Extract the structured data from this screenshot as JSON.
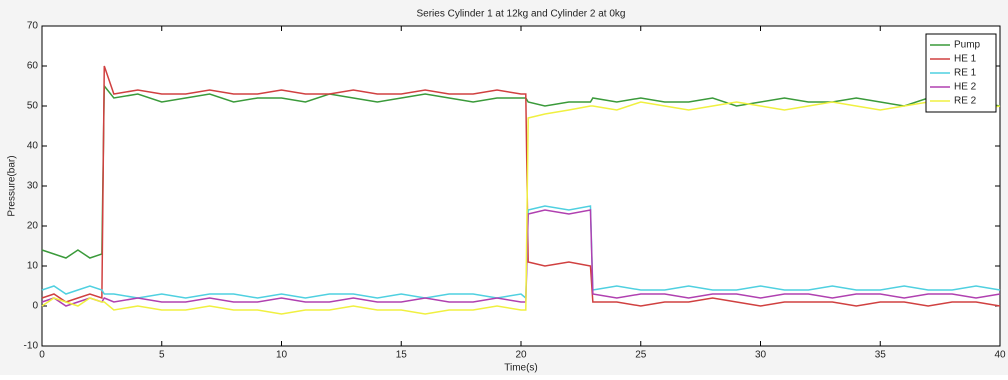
{
  "chart_data": {
    "type": "line",
    "title": "Series   Cylinder 1 at 12kg and Cylinder  2 at 0kg",
    "xlabel": "Time(s)",
    "ylabel": "Pressure(bar)",
    "x": [
      0,
      0.5,
      1,
      1.5,
      2,
      2.5,
      2.6,
      3,
      4,
      5,
      6,
      7,
      8,
      9,
      10,
      11,
      12,
      13,
      14,
      15,
      16,
      17,
      18,
      19,
      20,
      20.2,
      20.3,
      21,
      22,
      22.9,
      23,
      24,
      25,
      26,
      27,
      28,
      29,
      30,
      31,
      32,
      33,
      34,
      35,
      36,
      37,
      38,
      39,
      40
    ],
    "series": [
      {
        "name": "Pump",
        "color": "#3a9a3a",
        "values": [
          14,
          13,
          12,
          14,
          12,
          13,
          55,
          52,
          53,
          51,
          52,
          53,
          51,
          52,
          52,
          51,
          53,
          52,
          51,
          52,
          53,
          52,
          51,
          52,
          52,
          52,
          51,
          50,
          51,
          51,
          52,
          51,
          52,
          51,
          51,
          52,
          50,
          51,
          52,
          51,
          51,
          52,
          51,
          50,
          52,
          51,
          51,
          50
        ]
      },
      {
        "name": "HE 1",
        "color": "#d04040",
        "values": [
          2,
          3,
          1,
          2,
          3,
          2,
          60,
          53,
          54,
          53,
          53,
          54,
          53,
          53,
          54,
          53,
          53,
          54,
          53,
          53,
          54,
          53,
          53,
          54,
          53,
          53,
          11,
          10,
          11,
          10,
          1,
          1,
          0,
          1,
          1,
          2,
          1,
          0,
          1,
          1,
          1,
          0,
          1,
          1,
          0,
          1,
          1,
          0
        ]
      },
      {
        "name": "RE 1",
        "color": "#4fd0e0",
        "values": [
          4,
          5,
          3,
          4,
          5,
          4,
          3,
          3,
          2,
          3,
          2,
          3,
          3,
          2,
          3,
          2,
          3,
          3,
          2,
          3,
          2,
          3,
          3,
          2,
          3,
          2,
          24,
          25,
          24,
          25,
          4,
          5,
          4,
          4,
          5,
          4,
          4,
          5,
          4,
          4,
          5,
          4,
          4,
          5,
          4,
          4,
          5,
          4
        ]
      },
      {
        "name": "HE 2",
        "color": "#b040b0",
        "values": [
          1,
          2,
          0,
          1,
          2,
          1,
          2,
          1,
          2,
          1,
          1,
          2,
          1,
          1,
          2,
          1,
          1,
          2,
          1,
          1,
          2,
          1,
          1,
          2,
          1,
          1,
          23,
          24,
          23,
          24,
          3,
          2,
          3,
          3,
          2,
          3,
          3,
          2,
          3,
          3,
          2,
          3,
          3,
          2,
          3,
          3,
          2,
          3
        ]
      },
      {
        "name": "RE 2",
        "color": "#f0f040",
        "values": [
          0,
          2,
          1,
          0,
          2,
          1,
          1,
          -1,
          0,
          -1,
          -1,
          0,
          -1,
          -1,
          -2,
          -1,
          -1,
          0,
          -1,
          -1,
          -2,
          -1,
          -1,
          0,
          -1,
          -1,
          47,
          48,
          49,
          50,
          50,
          49,
          51,
          50,
          49,
          50,
          51,
          50,
          49,
          50,
          51,
          50,
          49,
          50,
          51,
          50,
          49,
          50
        ]
      }
    ],
    "xlim": [
      0,
      40
    ],
    "xticks": [
      0,
      5,
      10,
      15,
      20,
      25,
      30,
      35,
      40
    ],
    "ylim": [
      -10,
      70
    ],
    "yticks": [
      -10,
      0,
      10,
      20,
      30,
      40,
      50,
      60,
      70
    ],
    "grid": false,
    "legend": "northeast"
  }
}
